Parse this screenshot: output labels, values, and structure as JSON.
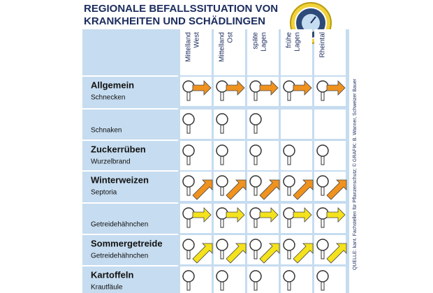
{
  "header": {
    "title": [
      "REGIONALE BEFALLSSITUATION VON",
      "KRANKHEITEN UND SCHÄDLINGEN"
    ]
  },
  "columns": [
    [
      "Mittelland",
      "West"
    ],
    [
      "Mittelland",
      "Ost"
    ],
    [
      "späte",
      "Lagen"
    ],
    [
      "frühe",
      "Lagen"
    ],
    [
      "Rheintal"
    ]
  ],
  "rows": [
    {
      "crop": "Allgemein",
      "pest": "Schnecken"
    },
    {
      "pest": "Schnaken"
    },
    {
      "crop": "Zuckerrüben",
      "pest": "Wurzelbrand"
    },
    {
      "crop": "Winterweizen",
      "pest": "Septoria"
    },
    {
      "pest": "Getreidehähnchen"
    },
    {
      "crop": "Sommergetreide",
      "pest": "Getreidehähnchen"
    },
    {
      "crop": "Kartoffeln",
      "pest": "Krautfäule"
    }
  ],
  "source": "QUELLE: kant. Fachstellen für Pflanzenschutz; © GRAFIK: B. Wanner, Schweizer Bauer"
}
